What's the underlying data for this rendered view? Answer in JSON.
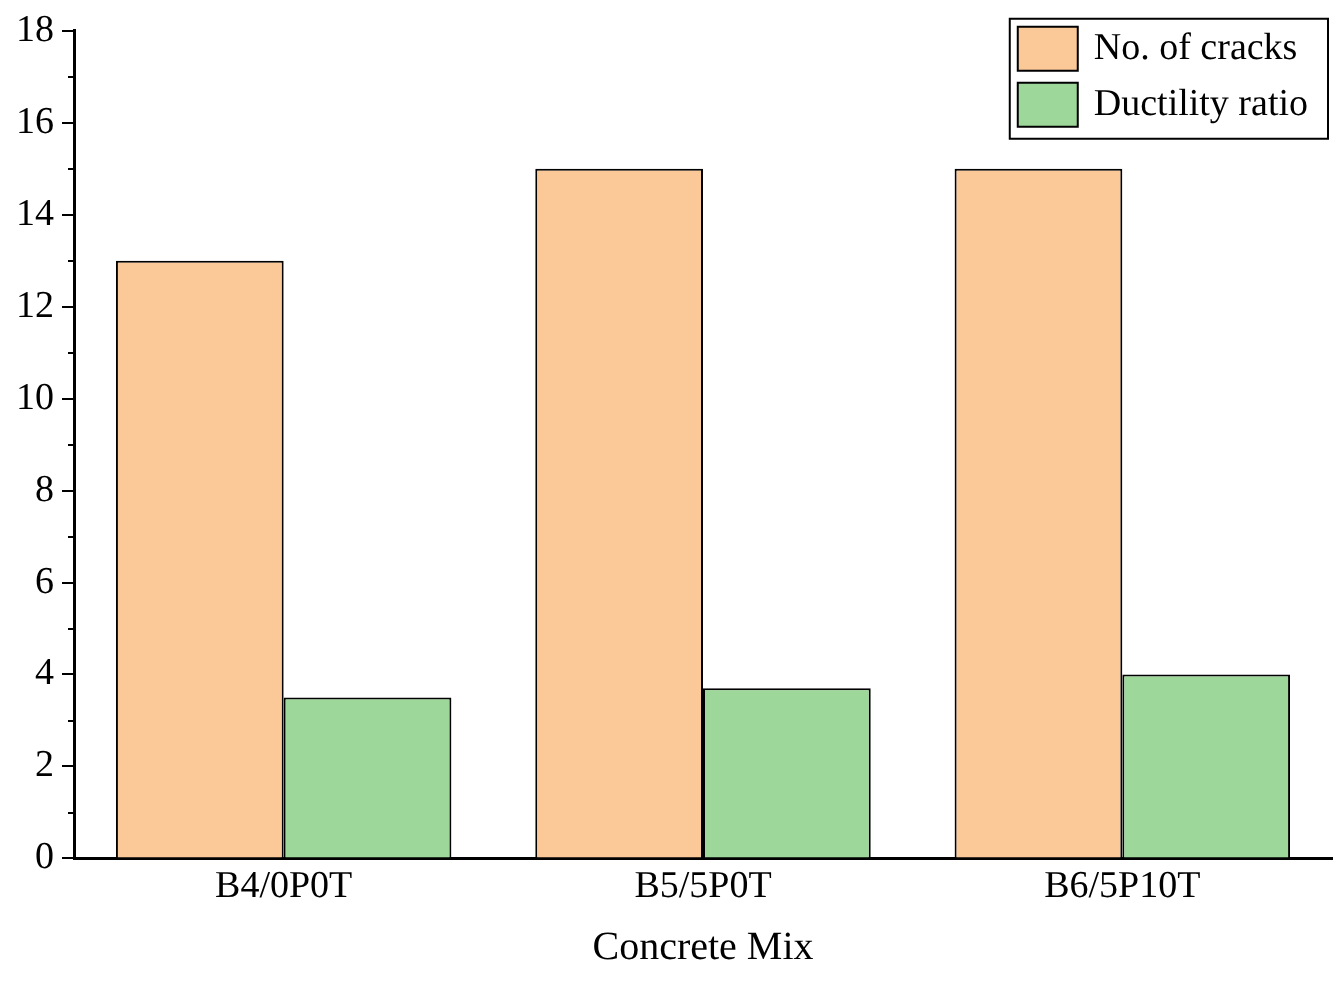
{
  "chart_data": {
    "type": "bar",
    "xlabel": "Concrete Mix",
    "categories": [
      "B4/0P0T",
      "B5/5P0T",
      "B6/5P10T"
    ],
    "series": [
      {
        "name": "No. of cracks",
        "color": "#fbc898",
        "values": [
          13,
          15,
          15
        ]
      },
      {
        "name": "Ductility ratio",
        "color": "#9ed79a",
        "values": [
          3.5,
          3.7,
          4.0
        ]
      }
    ],
    "ylim": [
      0,
      18
    ],
    "yticks": [
      0,
      2,
      4,
      6,
      8,
      10,
      12,
      14,
      16,
      18
    ],
    "grid": false,
    "legend": "top right"
  }
}
